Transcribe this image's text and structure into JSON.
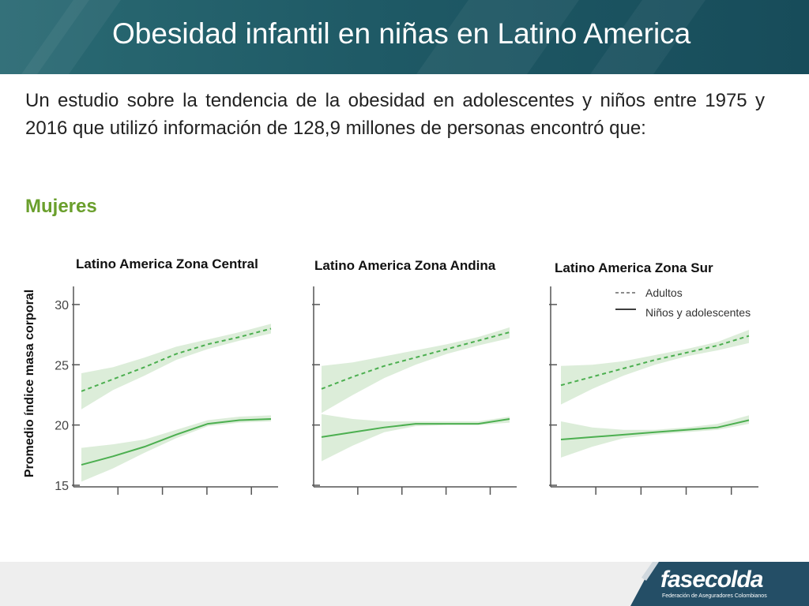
{
  "slide": {
    "title": "Obesidad infantil en niñas en Latino America",
    "intro": "Un estudio sobre la tendencia de la obesidad en adolescentes y niños entre 1975 y 2016 que utilizó información de 128,9 millones de personas encontró que:",
    "section_label": "Mujeres",
    "y_axis_label": "Promedio índice masa corporal"
  },
  "colors": {
    "header": "#1f5a66",
    "accent_green": "#6a9f2c",
    "series_line": "#4caf50",
    "band_fill": "#d6ead2"
  },
  "chart_data": [
    {
      "type": "line",
      "title": "Latino America Zona Central",
      "ylim": [
        15,
        31.5
      ],
      "yticks": [
        15,
        20,
        25,
        30
      ],
      "ytick_labels": [
        "15",
        "20",
        "25",
        "30"
      ],
      "x_tick_count": 4,
      "series": [
        {
          "name": "Adultos",
          "style": "dashed",
          "values": [
            22.8,
            23.8,
            24.8,
            25.9,
            26.7,
            27.3,
            28.0
          ],
          "lower": [
            21.3,
            22.9,
            24.1,
            25.4,
            26.3,
            27.0,
            27.6
          ],
          "upper": [
            24.3,
            24.8,
            25.6,
            26.5,
            27.1,
            27.7,
            28.4
          ]
        },
        {
          "name": "Niños y adolescentes",
          "style": "solid",
          "values": [
            16.7,
            17.4,
            18.2,
            19.2,
            20.1,
            20.4,
            20.5
          ],
          "lower": [
            15.3,
            16.4,
            17.7,
            18.9,
            19.9,
            20.2,
            20.3
          ],
          "upper": [
            18.1,
            18.4,
            18.8,
            19.6,
            20.4,
            20.7,
            20.8
          ]
        }
      ]
    },
    {
      "type": "line",
      "title": "Latino America Zona Andina",
      "ylim": [
        15,
        31.5
      ],
      "yticks": [
        15,
        20,
        25,
        30
      ],
      "ytick_labels": [
        "",
        "",
        "",
        ""
      ],
      "x_tick_count": 4,
      "series": [
        {
          "name": "Adultos",
          "style": "dashed",
          "values": [
            23.0,
            24.0,
            24.9,
            25.6,
            26.3,
            27.0,
            27.7
          ],
          "lower": [
            21.0,
            22.5,
            23.9,
            25.0,
            25.9,
            26.6,
            27.2
          ],
          "upper": [
            24.9,
            25.2,
            25.7,
            26.2,
            26.7,
            27.3,
            28.1
          ]
        },
        {
          "name": "Niños y adolescentes",
          "style": "solid",
          "values": [
            19.0,
            19.4,
            19.8,
            20.1,
            20.1,
            20.1,
            20.5
          ],
          "lower": [
            17.0,
            18.3,
            19.4,
            19.9,
            20.0,
            20.0,
            20.2
          ],
          "upper": [
            20.9,
            20.5,
            20.3,
            20.3,
            20.3,
            20.3,
            20.7
          ]
        }
      ]
    },
    {
      "type": "line",
      "title": "Latino America Zona Sur",
      "ylim": [
        15,
        31.5
      ],
      "yticks": [
        15,
        20,
        25,
        30
      ],
      "ytick_labels": [
        "",
        "",
        "",
        ""
      ],
      "x_tick_count": 4,
      "legend": {
        "position": "top-right",
        "entries": [
          "Adultos",
          "Niños y adolescentes"
        ]
      },
      "series": [
        {
          "name": "Adultos",
          "style": "dashed",
          "values": [
            23.3,
            24.0,
            24.7,
            25.4,
            26.0,
            26.6,
            27.4
          ],
          "lower": [
            21.7,
            23.0,
            24.1,
            25.0,
            25.7,
            26.2,
            26.8
          ],
          "upper": [
            24.9,
            25.0,
            25.3,
            25.8,
            26.3,
            26.9,
            27.9
          ]
        },
        {
          "name": "Niños y adolescentes",
          "style": "solid",
          "values": [
            18.8,
            19.0,
            19.2,
            19.4,
            19.6,
            19.8,
            20.4
          ],
          "lower": [
            17.3,
            18.2,
            18.9,
            19.2,
            19.4,
            19.6,
            20.1
          ],
          "upper": [
            20.3,
            19.8,
            19.6,
            19.6,
            19.8,
            20.1,
            20.8
          ]
        }
      ]
    }
  ],
  "footer": {
    "logo_text": "fasecolda",
    "logo_subtitle": "Federación de Aseguradores Colombianos"
  }
}
